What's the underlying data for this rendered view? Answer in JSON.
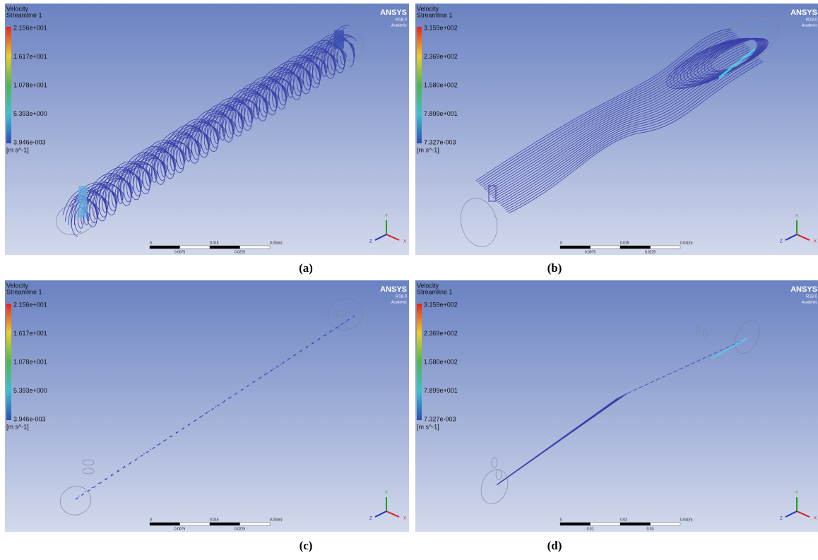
{
  "panels": [
    {
      "legend_title": "Velocity",
      "legend_subtitle": "Streamline 1",
      "legend_labels": [
        "2.156e+001",
        "1.617e+001",
        "1.078e+001",
        "5.393e+000",
        "3.946e-003"
      ],
      "unit": "[m s^-1]",
      "brand": "ANSYS",
      "version": "R18.0",
      "license": "Academic",
      "scale_top": [
        "0",
        "0.015",
        "0.03",
        "(m)"
      ],
      "scale_bottom": [
        "0.0075",
        "0.0225"
      ],
      "axes": [
        "X",
        "Y",
        "Z"
      ],
      "caption": "(a)"
    },
    {
      "legend_title": "Velocity",
      "legend_subtitle": "Streamline 1",
      "legend_labels": [
        "3.159e+002",
        "2.369e+002",
        "1.580e+002",
        "7.899e+001",
        "7.327e-003"
      ],
      "unit": "[m s^-1]",
      "brand": "ANSYS",
      "version": "R18.0",
      "license": "Academic",
      "scale_top": [
        "0",
        "0.015",
        "0.03",
        "(m)"
      ],
      "scale_bottom": [
        "0.0075",
        "0.0225"
      ],
      "axes": [
        "X",
        "Y",
        "Z"
      ],
      "caption": "(b)"
    },
    {
      "legend_title": "Velocity",
      "legend_subtitle": "Streamline 1",
      "legend_labels": [
        "2.156e+001",
        "1.617e+001",
        "1.078e+001",
        "5.393e+000",
        "3.946e-003"
      ],
      "unit": "[m s^-1]",
      "brand": "ANSYS",
      "version": "R18.0",
      "license": "Academic",
      "scale_top": [
        "0",
        "0.015",
        "0.03",
        "(m)"
      ],
      "scale_bottom": [
        "0.0075",
        "0.0225"
      ],
      "axes": [
        "X",
        "Y",
        "Z"
      ],
      "caption": "(c)"
    },
    {
      "legend_title": "Velocity",
      "legend_subtitle": "Streamline 1",
      "legend_labels": [
        "3.159e+002",
        "2.369e+002",
        "1.580e+002",
        "7.899e+001",
        "7.327e-003"
      ],
      "unit": "[m s^-1]",
      "brand": "ANSYS",
      "version": "R18.0",
      "license": "Academic",
      "scale_top": [
        "0",
        "0.02",
        "0.04",
        "(m)"
      ],
      "scale_bottom": [
        "0.01",
        "0.03"
      ],
      "axes": [
        "X",
        "Y",
        "Z"
      ],
      "caption": "(d)"
    }
  ]
}
